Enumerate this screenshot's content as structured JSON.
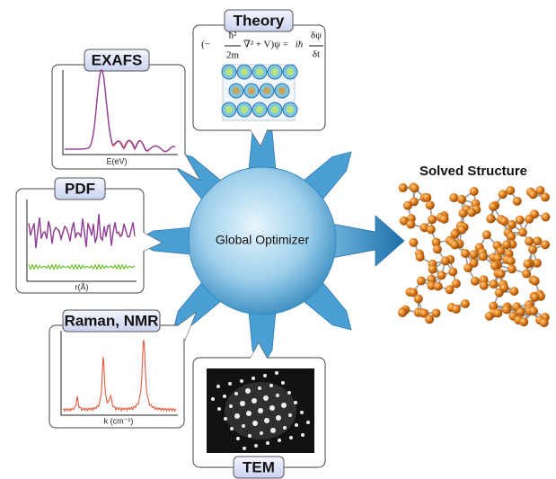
{
  "center": {
    "label": "Global Optimizer"
  },
  "output": {
    "title": "Solved Structure"
  },
  "panels": [
    {
      "title": "Theory",
      "equation": [
        "(−",
        "ħ²",
        "2m",
        "∇² + V)ψ =",
        "iħ",
        "δψ",
        "δt"
      ]
    },
    {
      "title": "EXAFS",
      "x_label": "E(eV)"
    },
    {
      "title": "PDF",
      "x_label": "r(Å)"
    },
    {
      "title": "Raman, NMR",
      "x_label": "k (cm⁻¹)"
    },
    {
      "title": "TEM"
    }
  ]
}
